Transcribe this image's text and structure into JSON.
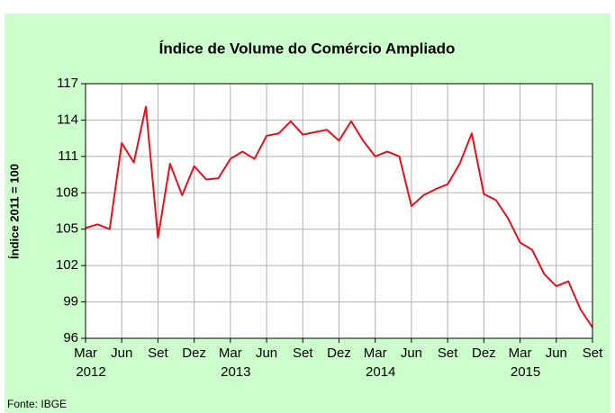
{
  "chart_data": {
    "type": "line",
    "title": "Índice de Volume do Comércio Ampliado",
    "y_label": "Índice 2011 = 100",
    "source": "Fonte: IBGE",
    "categories": [
      "Mar",
      null,
      null,
      "Jun",
      null,
      null,
      "Set",
      null,
      null,
      "Dez",
      null,
      null,
      "Mar",
      null,
      null,
      "Jun",
      null,
      null,
      "Set",
      null,
      null,
      "Dez",
      null,
      null,
      "Mar",
      null,
      null,
      "Jun",
      null,
      null,
      "Set",
      null,
      null,
      "Dez",
      null,
      null,
      "Mar",
      null,
      null,
      "Jun",
      null,
      null,
      "Set"
    ],
    "category_years": [
      "2012",
      null,
      null,
      null,
      null,
      null,
      null,
      null,
      null,
      null,
      null,
      null,
      "2013",
      null,
      null,
      null,
      null,
      null,
      null,
      null,
      null,
      null,
      null,
      null,
      "2014",
      null,
      null,
      null,
      null,
      null,
      null,
      null,
      null,
      null,
      null,
      null,
      "2015",
      null,
      null,
      null,
      null,
      null,
      null
    ],
    "series": [
      {
        "name": "Índice",
        "color": "#e8101a",
        "values": [
          105.1,
          105.4,
          105.0,
          112.1,
          110.5,
          115.1,
          104.3,
          110.4,
          107.8,
          110.2,
          109.1,
          109.2,
          110.8,
          111.4,
          110.8,
          112.7,
          112.9,
          113.9,
          112.8,
          113.0,
          113.2,
          112.3,
          113.9,
          112.3,
          111.0,
          111.4,
          111.0,
          106.9,
          107.8,
          108.3,
          108.7,
          110.4,
          112.9,
          107.9,
          107.4,
          105.9,
          103.9,
          103.3,
          101.3,
          100.3,
          100.7,
          98.4,
          96.9
        ]
      }
    ],
    "ylim": [
      96,
      117
    ],
    "yticks": [
      96,
      99,
      102,
      105,
      108,
      111,
      114,
      117
    ],
    "grid": true
  }
}
